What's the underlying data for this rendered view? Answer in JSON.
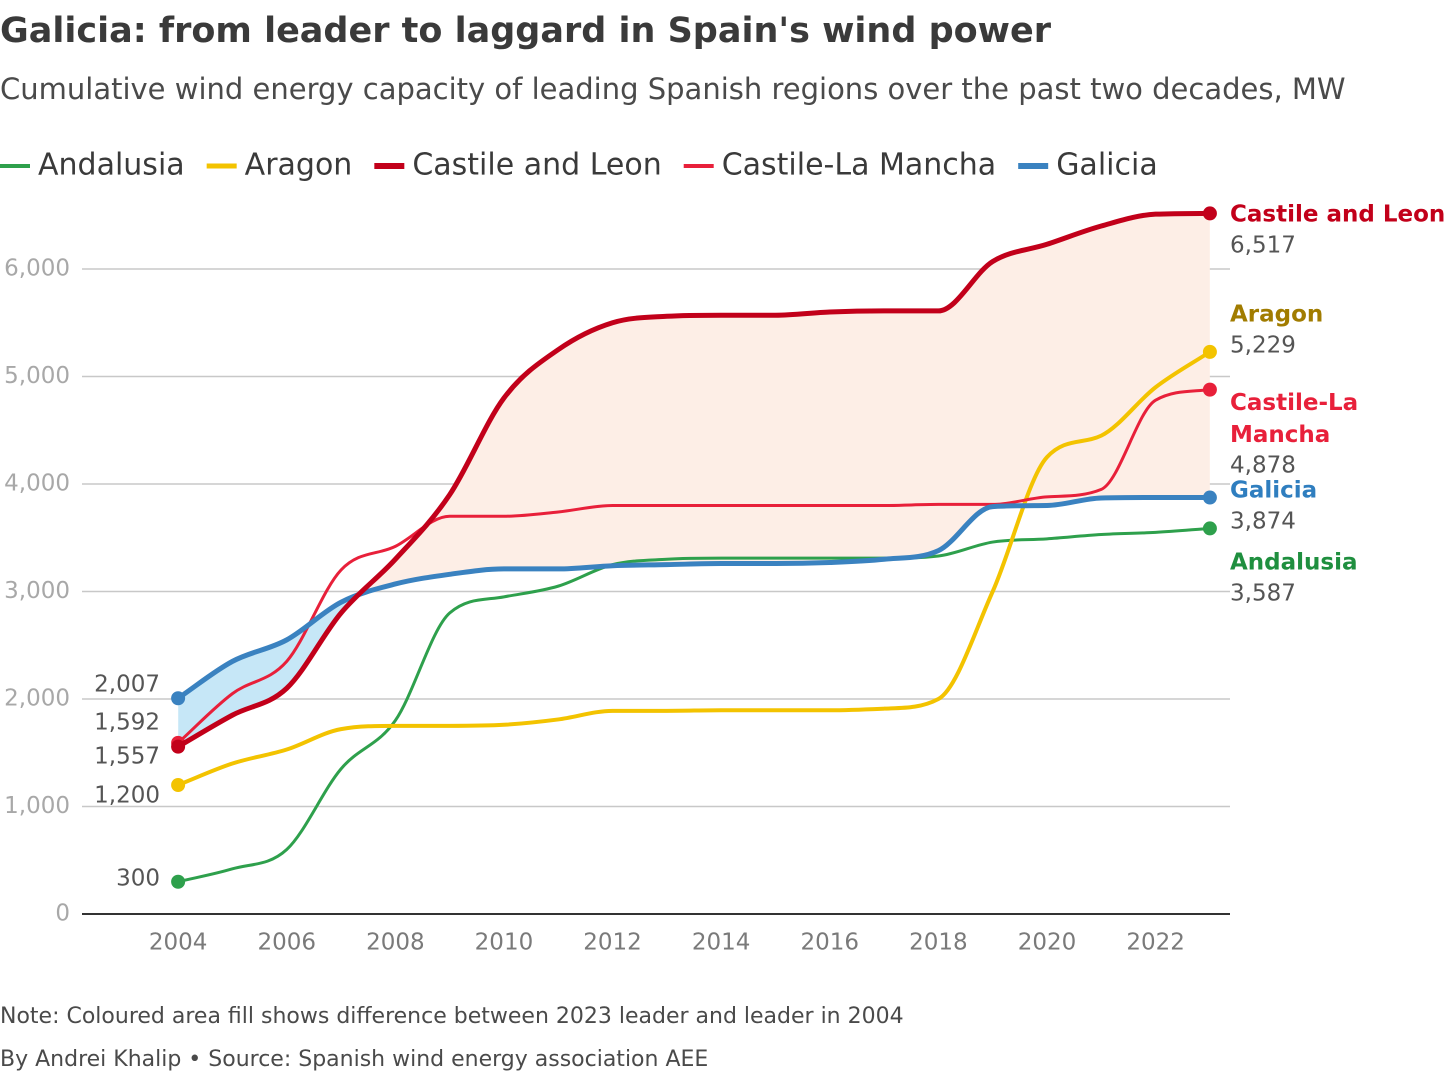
{
  "chart_data": {
    "type": "line",
    "title": "Galicia: from leader to laggard in Spain's wind power",
    "subtitle": "Cumulative wind energy capacity of leading Spanish regions over the past two decades, MW",
    "note": "Note: Coloured area fill shows difference between 2023 leader and leader in 2004",
    "source": "By Andrei Khalip • Source: Spanish wind energy association AEE",
    "x": [
      2004,
      2005,
      2006,
      2007,
      2008,
      2009,
      2010,
      2011,
      2012,
      2013,
      2014,
      2015,
      2016,
      2017,
      2018,
      2019,
      2020,
      2021,
      2022,
      2023
    ],
    "xlim": [
      2002.23,
      2023.37
    ],
    "xticks": [
      2004,
      2006,
      2008,
      2010,
      2012,
      2014,
      2016,
      2018,
      2020,
      2022
    ],
    "ylim": [
      0,
      6600
    ],
    "yticks": [
      0,
      {
        "value": 1000,
        "label": "1,000"
      },
      {
        "value": 2000,
        "label": "2,000"
      },
      {
        "value": 3000,
        "label": "3,000"
      },
      {
        "value": 4000,
        "label": "4,000"
      },
      {
        "value": 5000,
        "label": "5,000"
      },
      {
        "value": 6000,
        "label": "6,000"
      }
    ],
    "grid": true,
    "fill_between": {
      "series": [
        "Castile and Leon",
        "Galicia"
      ],
      "colors": [
        "#fdeee6",
        "#c6e7f7"
      ]
    },
    "series": [
      {
        "name": "Andalusia",
        "color": "#2ea04c",
        "label_color": "#1f8f3f",
        "width": 3,
        "values": [
          300,
          420,
          600,
          1350,
          1800,
          2800,
          2950,
          3050,
          3250,
          3300,
          3310,
          3310,
          3310,
          3310,
          3330,
          3460,
          3490,
          3530,
          3550,
          3587
        ],
        "value_labels": [
          "300",
          null,
          null,
          null,
          null,
          null,
          null,
          null,
          null,
          null,
          null,
          null,
          null,
          null,
          null,
          null,
          null,
          null,
          null,
          "3,587"
        ]
      },
      {
        "name": "Aragon",
        "color": "#f3c300",
        "label_color": "#a17c00",
        "width": 4,
        "values": [
          1200,
          1400,
          1530,
          1720,
          1750,
          1750,
          1760,
          1810,
          1890,
          1890,
          1895,
          1895,
          1895,
          1910,
          2000,
          3000,
          4250,
          4450,
          4900,
          5229
        ],
        "value_labels": [
          "1,200",
          null,
          null,
          null,
          null,
          null,
          null,
          null,
          null,
          null,
          null,
          null,
          null,
          null,
          null,
          null,
          null,
          null,
          null,
          "5,229"
        ]
      },
      {
        "name": "Castile and Leon",
        "color": "#c2001a",
        "label_color": "#c2001a",
        "width": 5,
        "values": [
          1557,
          1850,
          2100,
          2800,
          3300,
          3900,
          4800,
          5250,
          5500,
          5560,
          5570,
          5570,
          5600,
          5610,
          5610,
          6070,
          6230,
          6400,
          6510,
          6517
        ],
        "value_labels": [
          "1,557",
          null,
          null,
          null,
          null,
          null,
          null,
          null,
          null,
          null,
          null,
          null,
          null,
          null,
          null,
          null,
          null,
          null,
          null,
          "6,517"
        ]
      },
      {
        "name": "Castile-La Mancha",
        "color": "#e8203a",
        "label_color": "#e8203a",
        "width": 3,
        "values": [
          1592,
          2050,
          2350,
          3200,
          3420,
          3700,
          3700,
          3740,
          3800,
          3800,
          3800,
          3800,
          3800,
          3800,
          3810,
          3810,
          3880,
          3950,
          4780,
          4878
        ],
        "value_labels": [
          "1,592",
          null,
          null,
          null,
          null,
          null,
          null,
          null,
          null,
          null,
          null,
          null,
          null,
          null,
          null,
          null,
          null,
          null,
          null,
          "4,878"
        ]
      },
      {
        "name": "Galicia",
        "color": "#3a82c0",
        "label_color": "#2f7ebf",
        "width": 5,
        "values": [
          2007,
          2350,
          2550,
          2900,
          3070,
          3160,
          3210,
          3210,
          3240,
          3250,
          3260,
          3260,
          3270,
          3300,
          3380,
          3790,
          3800,
          3870,
          3874,
          3874
        ],
        "value_labels": [
          "2,007",
          null,
          null,
          null,
          null,
          null,
          null,
          null,
          null,
          null,
          null,
          null,
          null,
          null,
          null,
          null,
          null,
          null,
          null,
          "3,874"
        ]
      }
    ]
  }
}
